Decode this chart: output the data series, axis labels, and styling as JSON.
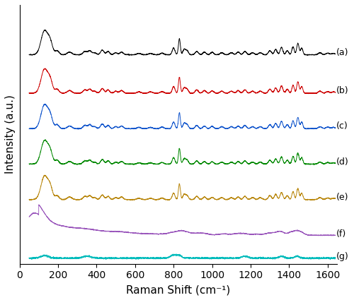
{
  "xlabel": "Raman Shift (cm⁻¹)",
  "ylabel": "Intensity (a.u.)",
  "xlim": [
    0,
    1650
  ],
  "xticks": [
    0,
    200,
    400,
    600,
    800,
    1000,
    1200,
    1400,
    1600
  ],
  "labels": [
    "(a)",
    "(b)",
    "(c)",
    "(d)",
    "(e)",
    "(f)",
    "(g)"
  ],
  "colors": [
    "#000000",
    "#cc0000",
    "#1155cc",
    "#008800",
    "#b8860b",
    "#9955bb",
    "#00bbbb"
  ],
  "offsets": [
    6.8,
    5.5,
    4.3,
    3.1,
    1.9,
    0.7,
    -0.1
  ],
  "background_color": "#ffffff",
  "figsize": [
    5.0,
    4.25
  ],
  "dpi": 100
}
